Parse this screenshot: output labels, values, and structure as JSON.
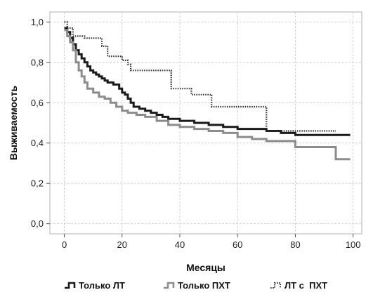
{
  "chart_data": {
    "type": "line",
    "step": true,
    "title": "",
    "xlabel": "Месяцы",
    "ylabel": "Выживаемость",
    "xlim": [
      -5,
      103
    ],
    "ylim": [
      -0.05,
      1.05
    ],
    "xticks": [
      0,
      20,
      40,
      60,
      80,
      100
    ],
    "xtick_labels": [
      "0",
      "20",
      "40",
      "60",
      "80",
      "100"
    ],
    "yticks": [
      0.0,
      0.2,
      0.4,
      0.6,
      0.8,
      1.0
    ],
    "ytick_labels": [
      "0,0",
      "0,2",
      "0,4",
      "0,6",
      "0,8",
      "1,0"
    ],
    "grid": true,
    "legend_position": "bottom",
    "series": [
      {
        "name": "Только ЛТ",
        "color": "#1a1a1a",
        "style": "solid",
        "x": [
          0,
          1,
          2,
          3,
          4,
          5,
          6,
          7,
          8,
          9,
          10,
          11,
          12,
          13,
          14,
          15,
          17,
          19,
          20,
          21,
          22,
          23,
          24,
          26,
          28,
          30,
          32,
          34,
          36,
          38,
          40,
          45,
          50,
          55,
          60,
          65,
          70,
          72,
          75,
          80,
          99
        ],
        "y": [
          0.97,
          0.95,
          0.92,
          0.89,
          0.86,
          0.84,
          0.82,
          0.8,
          0.78,
          0.76,
          0.75,
          0.74,
          0.73,
          0.72,
          0.71,
          0.7,
          0.69,
          0.67,
          0.65,
          0.64,
          0.62,
          0.6,
          0.58,
          0.57,
          0.56,
          0.55,
          0.54,
          0.53,
          0.52,
          0.52,
          0.51,
          0.5,
          0.49,
          0.48,
          0.47,
          0.47,
          0.46,
          0.46,
          0.45,
          0.44,
          0.44
        ]
      },
      {
        "name": "Только ПХТ",
        "color": "#8c8c8c",
        "style": "solid",
        "x": [
          0,
          1,
          2,
          3,
          4,
          5,
          6,
          7,
          8,
          10,
          12,
          14,
          16,
          18,
          20,
          22,
          25,
          28,
          32,
          36,
          40,
          45,
          50,
          55,
          60,
          65,
          70,
          80,
          94,
          99
        ],
        "y": [
          0.96,
          0.93,
          0.9,
          0.86,
          0.8,
          0.76,
          0.73,
          0.7,
          0.67,
          0.65,
          0.63,
          0.62,
          0.6,
          0.58,
          0.56,
          0.55,
          0.54,
          0.53,
          0.51,
          0.49,
          0.48,
          0.47,
          0.46,
          0.45,
          0.43,
          0.42,
          0.41,
          0.38,
          0.32,
          0.32
        ]
      },
      {
        "name": "ЛТ с  ПХТ",
        "color": "#333333",
        "style": "dotted",
        "x": [
          0,
          1,
          3,
          7,
          13,
          15,
          20,
          22,
          23,
          37,
          44,
          51,
          70,
          72,
          80,
          94
        ],
        "y": [
          1.0,
          0.97,
          0.93,
          0.92,
          0.88,
          0.83,
          0.81,
          0.79,
          0.76,
          0.67,
          0.64,
          0.58,
          0.46,
          0.46,
          0.46,
          0.46
        ]
      }
    ]
  }
}
